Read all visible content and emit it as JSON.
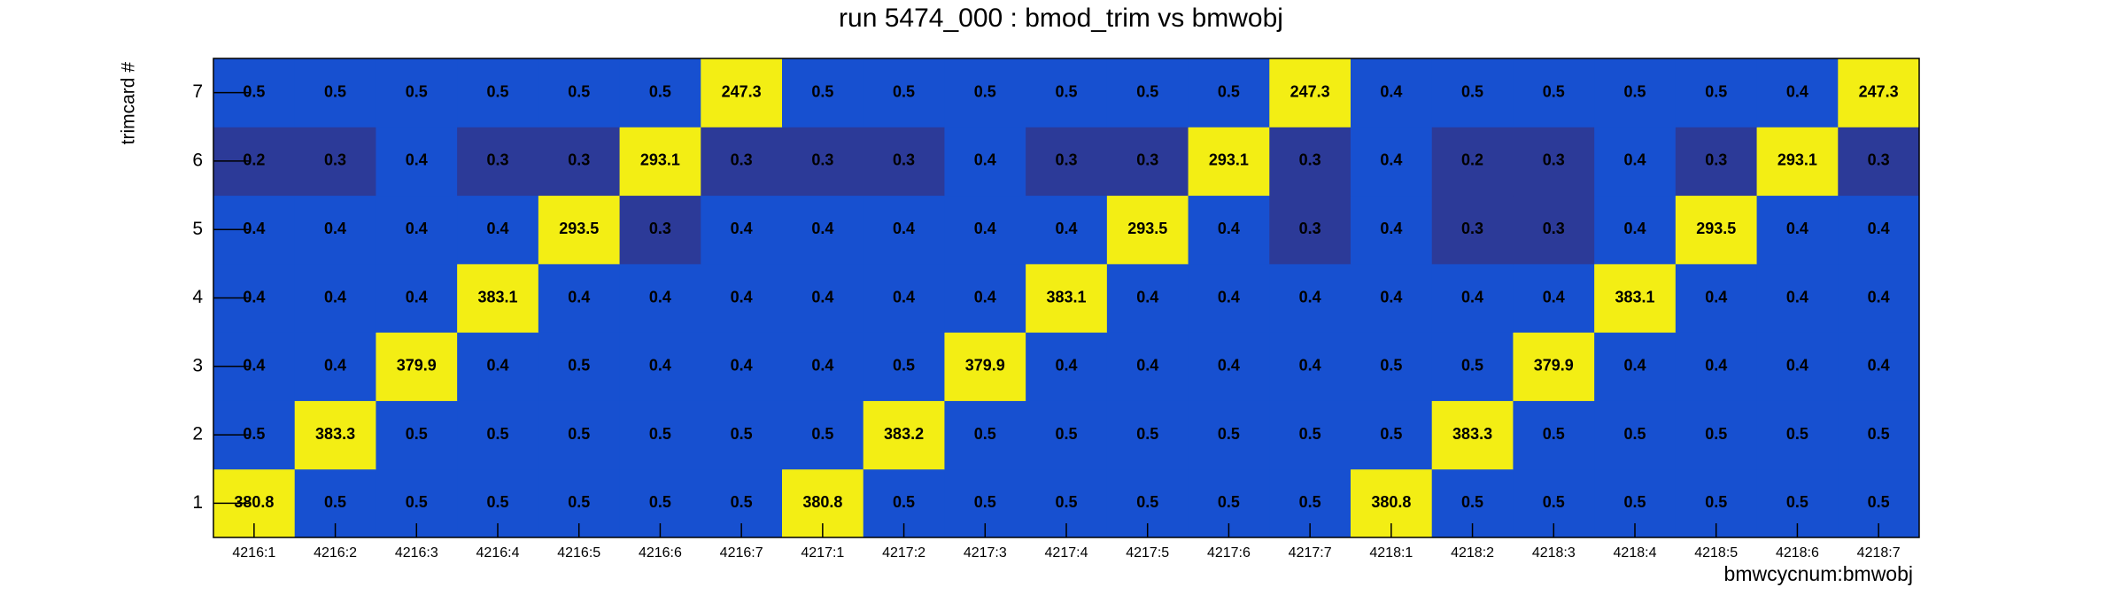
{
  "chart_data": {
    "type": "heatmap",
    "title": "run 5474_000 : bmod_trim vs bmwobj",
    "x_label": "bmwcycnum:bmwobj",
    "y_label": "trimcard #",
    "categories": [
      "4216:1",
      "4216:2",
      "4216:3",
      "4216:4",
      "4216:5",
      "4216:6",
      "4216:7",
      "4217:1",
      "4217:2",
      "4217:3",
      "4217:4",
      "4217:5",
      "4217:6",
      "4217:7",
      "4218:1",
      "4218:2",
      "4218:3",
      "4218:4",
      "4218:5",
      "4218:6",
      "4218:7"
    ],
    "ylim": [
      0.5,
      7.5
    ],
    "yticks": [
      1,
      2,
      3,
      4,
      5,
      6,
      7
    ],
    "z": [
      [
        380.8,
        0.5,
        0.5,
        0.5,
        0.5,
        0.5,
        0.5,
        380.8,
        0.5,
        0.5,
        0.5,
        0.5,
        0.5,
        0.5,
        380.8,
        0.5,
        0.5,
        0.5,
        0.5,
        0.5,
        0.5
      ],
      [
        0.5,
        383.3,
        0.5,
        0.5,
        0.5,
        0.5,
        0.5,
        0.5,
        383.2,
        0.5,
        0.5,
        0.5,
        0.5,
        0.5,
        0.5,
        383.3,
        0.5,
        0.5,
        0.5,
        0.5,
        0.5
      ],
      [
        0.4,
        0.4,
        379.9,
        0.4,
        0.5,
        0.4,
        0.4,
        0.4,
        0.5,
        379.9,
        0.4,
        0.4,
        0.4,
        0.4,
        0.5,
        0.5,
        379.9,
        0.4,
        0.4,
        0.4,
        0.4
      ],
      [
        0.4,
        0.4,
        0.4,
        383.1,
        0.4,
        0.4,
        0.4,
        0.4,
        0.4,
        0.4,
        383.1,
        0.4,
        0.4,
        0.4,
        0.4,
        0.4,
        0.4,
        383.1,
        0.4,
        0.4,
        0.4
      ],
      [
        0.4,
        0.4,
        0.4,
        0.4,
        293.5,
        0.3,
        0.4,
        0.4,
        0.4,
        0.4,
        0.4,
        293.5,
        0.4,
        0.3,
        0.4,
        0.3,
        0.3,
        0.4,
        293.5,
        0.4,
        0.4
      ],
      [
        0.2,
        0.3,
        0.4,
        0.3,
        0.3,
        293.1,
        0.3,
        0.3,
        0.3,
        0.4,
        0.3,
        0.3,
        293.1,
        0.3,
        0.4,
        0.2,
        0.3,
        0.4,
        0.3,
        293.1,
        0.3
      ],
      [
        0.5,
        0.5,
        0.5,
        0.5,
        0.5,
        0.5,
        247.3,
        0.5,
        0.5,
        0.5,
        0.5,
        0.5,
        0.5,
        247.3,
        0.4,
        0.5,
        0.5,
        0.5,
        0.5,
        0.4,
        247.3
      ]
    ],
    "zlog": true,
    "palette": [
      "#2c3a98",
      "#1750d0",
      "#1f62c8",
      "#2d78bd",
      "#3a8fb0",
      "#4aa5a0",
      "#5fb98e",
      "#7ac878",
      "#98d460",
      "#b6dc4a",
      "#d0e03a",
      "#e4e02c",
      "#eedc22",
      "#f3ee14"
    ]
  }
}
